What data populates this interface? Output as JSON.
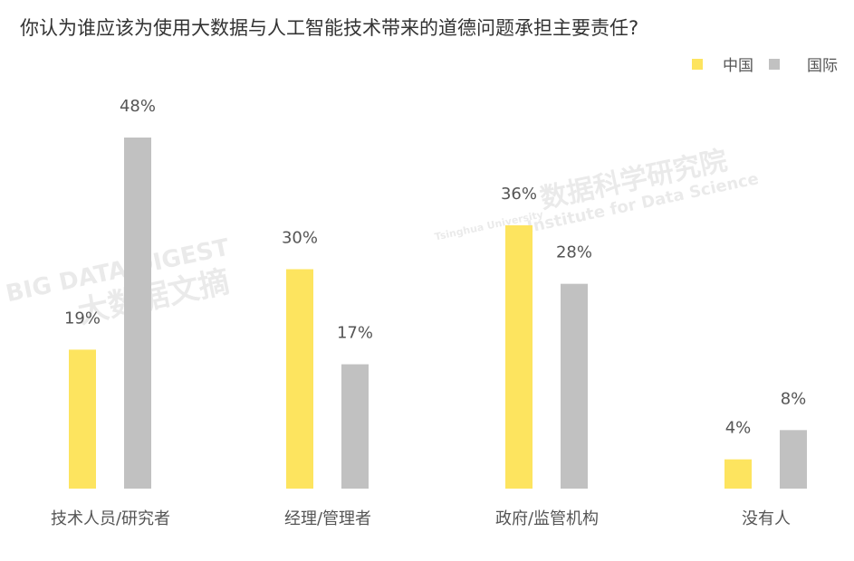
{
  "chart_data": {
    "type": "bar",
    "title": "你认为谁应该为使用大数据与人工智能技术带来的道德问题承担主要责任?",
    "categories": [
      "技术人员/研究者",
      "经理/管理者",
      "政府/监管机构",
      "没有人"
    ],
    "series": [
      {
        "name": "中国",
        "color": "#fde45f",
        "values": [
          19,
          30,
          36,
          4
        ],
        "value_labels": [
          "19%",
          "30%",
          "36%",
          "4%"
        ]
      },
      {
        "name": "国际",
        "color": "#c1c1c1",
        "values": [
          48,
          17,
          28,
          8
        ],
        "value_labels": [
          "48%",
          "17%",
          "28%",
          "8%"
        ]
      }
    ],
    "legend": "top-right",
    "watermarks": [
      "BIG DATA DIGEST",
      "大数据文摘",
      "数据科学研究院",
      "Institute for Data Science",
      "Tsinghua University"
    ]
  }
}
